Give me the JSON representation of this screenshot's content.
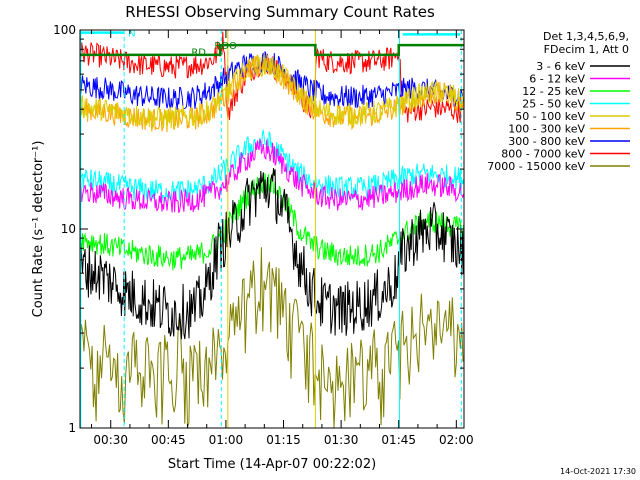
{
  "chart_data": {
    "type": "line",
    "title": "RHESSI Observing Summary Count Rates",
    "xlabel": "Start Time (14-Apr-07 00:22:02)",
    "ylabel": "Count Rate (s⁻¹ detector⁻¹)",
    "yscale": "log",
    "ylim": [
      1,
      100
    ],
    "xlim_minutes": [
      22.0,
      122.0
    ],
    "x_ticks": [
      {
        "minute": 30,
        "label": "00:30"
      },
      {
        "minute": 45,
        "label": "00:45"
      },
      {
        "minute": 60,
        "label": "01:00"
      },
      {
        "minute": 75,
        "label": "01:15"
      },
      {
        "minute": 90,
        "label": "01:30"
      },
      {
        "minute": 105,
        "label": "01:45"
      },
      {
        "minute": 120,
        "label": "02:00"
      }
    ],
    "y_ticks": [
      {
        "value": 1,
        "label": "1"
      },
      {
        "value": 10,
        "label": "10"
      },
      {
        "value": 100,
        "label": "100"
      }
    ],
    "legend_header": [
      "Det 1,3,4,5,6,9,",
      "FDecim 1, Att 0"
    ],
    "series": [
      {
        "name": "3 - 6 keV",
        "color": "#000000",
        "points": [
          [
            22,
            6.5
          ],
          [
            28,
            5.8
          ],
          [
            34,
            4.8
          ],
          [
            40,
            4.2
          ],
          [
            46,
            3.8
          ],
          [
            52,
            3.9
          ],
          [
            55,
            5
          ],
          [
            58,
            8
          ],
          [
            60,
            9
          ],
          [
            63,
            11
          ],
          [
            66,
            14
          ],
          [
            69,
            16
          ],
          [
            71,
            16.5
          ],
          [
            73,
            15
          ],
          [
            76,
            11
          ],
          [
            79,
            7
          ],
          [
            82,
            5
          ],
          [
            85,
            4.2
          ],
          [
            90,
            3.9
          ],
          [
            95,
            4.1
          ],
          [
            100,
            4.6
          ],
          [
            104,
            5.5
          ],
          [
            106,
            7.5
          ],
          [
            109,
            9
          ],
          [
            113,
            10
          ],
          [
            116,
            9.7
          ],
          [
            119,
            8.5
          ],
          [
            121,
            7.8
          ]
        ]
      },
      {
        "name": "6 - 12 keV",
        "color": "#ff00ff",
        "points": [
          [
            22,
            15.5
          ],
          [
            28,
            15
          ],
          [
            34,
            14.2
          ],
          [
            40,
            13.7
          ],
          [
            46,
            13.5
          ],
          [
            52,
            14
          ],
          [
            56,
            15
          ],
          [
            60,
            17
          ],
          [
            63,
            20
          ],
          [
            66,
            23
          ],
          [
            69,
            25
          ],
          [
            71,
            25
          ],
          [
            73,
            23
          ],
          [
            76,
            20
          ],
          [
            79,
            17
          ],
          [
            82,
            15.5
          ],
          [
            85,
            14.5
          ],
          [
            90,
            14
          ],
          [
            95,
            14.1
          ],
          [
            100,
            14.6
          ],
          [
            104,
            15.2
          ],
          [
            108,
            16
          ],
          [
            112,
            16.8
          ],
          [
            116,
            16.5
          ],
          [
            121,
            15.5
          ]
        ]
      },
      {
        "name": "12 - 25 keV",
        "color": "#00ff00",
        "points": [
          [
            22,
            9
          ],
          [
            28,
            8.4
          ],
          [
            34,
            7.8
          ],
          [
            40,
            7.4
          ],
          [
            46,
            7.1
          ],
          [
            52,
            7.3
          ],
          [
            56,
            8
          ],
          [
            60,
            10
          ],
          [
            63,
            12.5
          ],
          [
            66,
            15
          ],
          [
            69,
            17
          ],
          [
            71,
            17.5
          ],
          [
            73,
            16
          ],
          [
            76,
            13
          ],
          [
            79,
            10
          ],
          [
            82,
            8.5
          ],
          [
            85,
            7.8
          ],
          [
            90,
            7.3
          ],
          [
            95,
            7.3
          ],
          [
            100,
            7.7
          ],
          [
            104,
            8.7
          ],
          [
            108,
            10
          ],
          [
            112,
            11
          ],
          [
            116,
            10.8
          ],
          [
            121,
            10
          ]
        ]
      },
      {
        "name": "25 - 50 keV",
        "color": "#00ffff",
        "points": [
          [
            22,
            18
          ],
          [
            28,
            17
          ],
          [
            34,
            16.2
          ],
          [
            40,
            15.6
          ],
          [
            46,
            15.4
          ],
          [
            52,
            15.8
          ],
          [
            56,
            17
          ],
          [
            60,
            20
          ],
          [
            63,
            23
          ],
          [
            66,
            26
          ],
          [
            69,
            27.5
          ],
          [
            71,
            27.5
          ],
          [
            73,
            25
          ],
          [
            76,
            22
          ],
          [
            79,
            19
          ],
          [
            82,
            17.5
          ],
          [
            85,
            16.6
          ],
          [
            90,
            16
          ],
          [
            95,
            16
          ],
          [
            100,
            16.6
          ],
          [
            104,
            17.6
          ],
          [
            108,
            18.5
          ],
          [
            112,
            19
          ],
          [
            116,
            18.6
          ],
          [
            121,
            18
          ]
        ]
      },
      {
        "name": "50 - 100 keV",
        "color": "#ddcc00",
        "points": [
          [
            22,
            41
          ],
          [
            28,
            40
          ],
          [
            34,
            38
          ],
          [
            40,
            36.5
          ],
          [
            46,
            36
          ],
          [
            52,
            37
          ],
          [
            56,
            40
          ],
          [
            60,
            48
          ],
          [
            63,
            57
          ],
          [
            66,
            64
          ],
          [
            69,
            67
          ],
          [
            71,
            67
          ],
          [
            73,
            63
          ],
          [
            76,
            56
          ],
          [
            79,
            48
          ],
          [
            82,
            42
          ],
          [
            85,
            39
          ],
          [
            90,
            37.5
          ],
          [
            95,
            37.5
          ],
          [
            100,
            39
          ],
          [
            104,
            41
          ],
          [
            108,
            45
          ],
          [
            112,
            48
          ],
          [
            116,
            49
          ],
          [
            119,
            47
          ],
          [
            121,
            44
          ]
        ]
      },
      {
        "name": "100 - 300 keV",
        "color": "#ffa500",
        "points": [
          [
            22,
            40
          ],
          [
            28,
            39
          ],
          [
            34,
            37
          ],
          [
            40,
            35.5
          ],
          [
            46,
            35
          ],
          [
            52,
            36
          ],
          [
            56,
            39
          ],
          [
            60,
            47
          ],
          [
            63,
            56
          ],
          [
            66,
            63
          ],
          [
            69,
            66
          ],
          [
            71,
            66
          ],
          [
            73,
            62
          ],
          [
            76,
            55
          ],
          [
            79,
            47
          ],
          [
            82,
            41
          ],
          [
            85,
            38
          ],
          [
            90,
            36.5
          ],
          [
            95,
            36.5
          ],
          [
            100,
            38
          ],
          [
            104,
            40
          ],
          [
            108,
            44
          ],
          [
            112,
            47
          ],
          [
            116,
            48
          ],
          [
            119,
            46
          ],
          [
            121,
            43
          ]
        ]
      },
      {
        "name": "300 - 800 keV",
        "color": "#0000ff",
        "points": [
          [
            22,
            53
          ],
          [
            28,
            51
          ],
          [
            34,
            48
          ],
          [
            40,
            46
          ],
          [
            46,
            45
          ],
          [
            52,
            46
          ],
          [
            56,
            50
          ],
          [
            60,
            58
          ],
          [
            63,
            64
          ],
          [
            66,
            68
          ],
          [
            69,
            70
          ],
          [
            71,
            70
          ],
          [
            73,
            67
          ],
          [
            76,
            61
          ],
          [
            79,
            55
          ],
          [
            82,
            50
          ],
          [
            85,
            47
          ],
          [
            90,
            46
          ],
          [
            95,
            46
          ],
          [
            100,
            47
          ],
          [
            104,
            49
          ],
          [
            108,
            51
          ],
          [
            112,
            50
          ],
          [
            116,
            48
          ],
          [
            121,
            47
          ]
        ]
      },
      {
        "name": "800 - 7000 keV",
        "color": "#ff0000",
        "points": [
          [
            22,
            77
          ],
          [
            26,
            75
          ],
          [
            30,
            72
          ],
          [
            34,
            69
          ],
          [
            38,
            67
          ],
          [
            42,
            66
          ],
          [
            46,
            65
          ],
          [
            50,
            66
          ],
          [
            54,
            68
          ],
          [
            57,
            72
          ],
          [
            58.5,
            82
          ],
          [
            59.5,
            90
          ],
          [
            60.5,
            38
          ],
          [
            63,
            50
          ],
          [
            66,
            62
          ],
          [
            69,
            68
          ],
          [
            71,
            68
          ],
          [
            73,
            64
          ],
          [
            76,
            56
          ],
          [
            79,
            47
          ],
          [
            82,
            40
          ],
          [
            83,
            38
          ],
          [
            83.5,
            75
          ],
          [
            86,
            70
          ],
          [
            90,
            69
          ],
          [
            95,
            69
          ],
          [
            100,
            70
          ],
          [
            103,
            72
          ],
          [
            104.5,
            76
          ],
          [
            105,
            85
          ],
          [
            106,
            38
          ],
          [
            110,
            40
          ],
          [
            114,
            41
          ],
          [
            118,
            40
          ],
          [
            121,
            39
          ]
        ]
      },
      {
        "name": "7000 - 15000 keV",
        "color": "#808000",
        "points": [
          [
            22,
            2
          ],
          [
            24,
            2.5
          ],
          [
            26,
            1.3
          ],
          [
            28,
            2.8
          ],
          [
            30,
            1.6
          ],
          [
            32,
            2.2
          ],
          [
            34,
            1.4
          ],
          [
            36,
            2.7
          ],
          [
            38,
            1.2
          ],
          [
            40,
            2.4
          ],
          [
            42,
            1.5
          ],
          [
            44,
            2.1
          ],
          [
            46,
            1.3
          ],
          [
            48,
            2.6
          ],
          [
            50,
            1.6
          ],
          [
            52,
            2.3
          ],
          [
            54,
            1.4
          ],
          [
            56,
            2.5
          ],
          [
            58,
            2
          ],
          [
            60,
            2.4
          ],
          [
            62,
            2.8
          ],
          [
            64,
            3.4
          ],
          [
            66,
            4.2
          ],
          [
            68,
            5
          ],
          [
            70,
            5.4
          ],
          [
            72,
            4.8
          ],
          [
            74,
            4
          ],
          [
            76,
            3.4
          ],
          [
            78,
            3
          ],
          [
            80,
            2.6
          ],
          [
            82,
            2.2
          ],
          [
            84,
            1.6
          ],
          [
            86,
            2.4
          ],
          [
            88,
            1.3
          ],
          [
            90,
            2.3
          ],
          [
            92,
            1.5
          ],
          [
            94,
            2.6
          ],
          [
            96,
            1.4
          ],
          [
            98,
            2.2
          ],
          [
            100,
            1.6
          ],
          [
            102,
            2.5
          ],
          [
            104,
            2.2
          ],
          [
            106,
            2.6
          ],
          [
            108,
            2.7
          ],
          [
            110,
            3
          ],
          [
            112,
            3.2
          ],
          [
            114,
            3
          ],
          [
            116,
            2.8
          ],
          [
            118,
            2.9
          ],
          [
            121,
            2.7
          ]
        ]
      }
    ],
    "annotations": [
      {
        "label": "N",
        "color": "#00ffff",
        "bar_minutes": [
          22,
          33.5
        ],
        "y_value": 97
      },
      {
        "label": "",
        "color": "#00ffff",
        "bar_minutes": [
          106,
          121
        ],
        "y_value": 95
      },
      {
        "label": "RD",
        "color": "#008000",
        "y_value": 78
      },
      {
        "label": "RDO",
        "color": "#008000",
        "y_value": 84
      }
    ],
    "attenuator_level": 75,
    "vertical_lines": [
      {
        "minute": 22.2,
        "color": "#00ffff",
        "style": "solid"
      },
      {
        "minute": 33.5,
        "color": "#00ffff",
        "style": "dashed"
      },
      {
        "minute": 58.8,
        "color": "#00ffff",
        "style": "dashed"
      },
      {
        "minute": 105.2,
        "color": "#00ffff",
        "style": "solid"
      },
      {
        "minute": 121.3,
        "color": "#00ffff",
        "style": "dashed"
      },
      {
        "minute": 60.5,
        "color": "#ddcc00",
        "style": "solid"
      },
      {
        "minute": 83.3,
        "color": "#ddcc00",
        "style": "solid"
      }
    ],
    "timestamp": "14-Oct-2021 17:30"
  }
}
